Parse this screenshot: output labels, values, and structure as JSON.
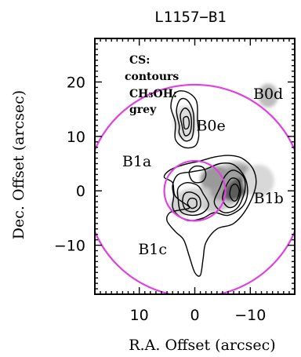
{
  "chart_data": {
    "type": "contour",
    "title": "L1157−B1",
    "xlabel": "R.A. Offset (arcsec)",
    "ylabel": "Dec. Offset (arcsec)",
    "xlim": [
      18,
      -18
    ],
    "ylim": [
      -19,
      28
    ],
    "x_ticks": [
      {
        "value": 10,
        "label": "10"
      },
      {
        "value": 0,
        "label": "0"
      },
      {
        "value": -10,
        "label": "−10"
      }
    ],
    "y_ticks": [
      {
        "value": 20,
        "label": "20"
      },
      {
        "value": 10,
        "label": "10"
      },
      {
        "value": 0,
        "label": "0"
      },
      {
        "value": -10,
        "label": "−10"
      }
    ],
    "legend": {
      "line1": "CS:",
      "line2": "contours",
      "line3": "CH₃OH:",
      "line4": "grey"
    },
    "sources": [
      {
        "name": "B0d",
        "x": -13.2,
        "y": 17.5
      },
      {
        "name": "B0e",
        "x": 1.7,
        "y": 12.5
      },
      {
        "name": "B1a",
        "x": 1.5,
        "y": 2.5
      },
      {
        "name": "B1b",
        "x": -7.5,
        "y": 0.3
      },
      {
        "name": "B1c",
        "x": 2.0,
        "y": -3.0
      }
    ],
    "colors": {
      "beam_circles": "#e040e0",
      "contours": "#000000",
      "grey_emission": "#555555"
    },
    "beams": [
      {
        "center_x": 0,
        "center_y": 0,
        "radius_arcsec": 19.5
      },
      {
        "center_x": 0,
        "center_y": 0,
        "radius_arcsec": 5.5
      }
    ]
  }
}
